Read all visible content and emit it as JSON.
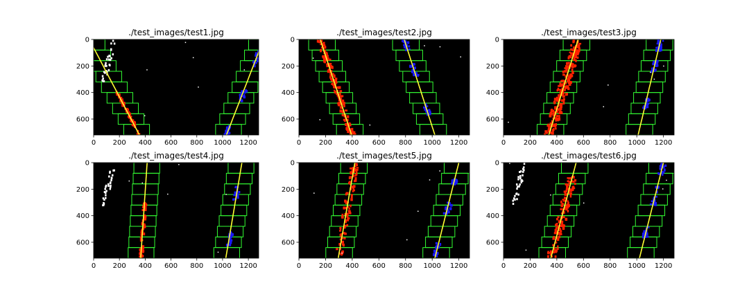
{
  "figure": {
    "colors": {
      "background": "#ffffff",
      "plot_bg": "#000000",
      "window_box": "#33ff33",
      "fit_line": "#ffff33",
      "left_lane_pixels": "#ff2200",
      "right_lane_pixels": "#1a1aff",
      "noise_pixels": "#ffffff"
    }
  },
  "chart_data": [
    {
      "type": "image",
      "title": "./test_images/test1.jpg",
      "xlim": [
        0,
        1280
      ],
      "ylim": [
        720,
        0
      ],
      "xticks": [
        0,
        200,
        400,
        600,
        800,
        1000,
        1200
      ],
      "yticks": [
        0,
        200,
        400,
        600
      ],
      "left_fit": [
        [
          220,
          470
        ],
        [
          355,
          720
        ]
      ],
      "right_fit": [
        [
          1130,
          470
        ],
        [
          1030,
          720
        ]
      ]
    },
    {
      "type": "image",
      "title": "./test_images/test2.jpg",
      "xlim": [
        0,
        1280
      ],
      "ylim": [
        720,
        0
      ],
      "xticks": [
        0,
        200,
        400,
        600,
        800,
        1000,
        1200
      ],
      "yticks": [
        0,
        200,
        400,
        600
      ],
      "left_fit": [
        [
          160,
          0
        ],
        [
          395,
          720
        ]
      ],
      "right_fit": [
        [
          790,
          0
        ],
        [
          1020,
          720
        ]
      ]
    },
    {
      "type": "image",
      "title": "./test_images/test3.jpg",
      "xlim": [
        0,
        1280
      ],
      "ylim": [
        720,
        0
      ],
      "xticks": [
        0,
        200,
        400,
        600,
        800,
        1000,
        1200
      ],
      "yticks": [
        0,
        200,
        400,
        600
      ],
      "left_fit": [
        [
          560,
          0
        ],
        [
          340,
          720
        ]
      ],
      "right_fit": [
        [
          1180,
          0
        ],
        [
          1010,
          720
        ]
      ]
    },
    {
      "type": "image",
      "title": "./test_images/test4.jpg",
      "xlim": [
        0,
        1280
      ],
      "ylim": [
        720,
        0
      ],
      "xticks": [
        0,
        200,
        400,
        600,
        800,
        1000,
        1200
      ],
      "yticks": [
        0,
        200,
        400,
        600
      ],
      "left_fit": [
        [
          415,
          0
        ],
        [
          365,
          720
        ]
      ],
      "right_fit": [
        [
          1150,
          0
        ],
        [
          1025,
          720
        ]
      ]
    },
    {
      "type": "image",
      "title": "./test_images/test5.jpg",
      "xlim": [
        0,
        1280
      ],
      "ylim": [
        720,
        0
      ],
      "xticks": [
        0,
        200,
        400,
        600,
        800,
        1000,
        1200
      ],
      "yticks": [
        0,
        200,
        400,
        600
      ],
      "left_fit": [
        [
          420,
          0
        ],
        [
          295,
          720
        ]
      ],
      "right_fit": [
        [
          1200,
          0
        ],
        [
          1020,
          720
        ]
      ]
    },
    {
      "type": "image",
      "title": "./test_images/test6.jpg",
      "xlim": [
        0,
        1280
      ],
      "ylim": [
        720,
        0
      ],
      "xticks": [
        0,
        200,
        400,
        600,
        800,
        1000,
        1200
      ],
      "yticks": [
        0,
        200,
        400,
        600
      ],
      "left_fit": [
        [
          545,
          0
        ],
        [
          355,
          720
        ]
      ],
      "right_fit": [
        [
          1200,
          0
        ],
        [
          1020,
          720
        ]
      ]
    }
  ]
}
